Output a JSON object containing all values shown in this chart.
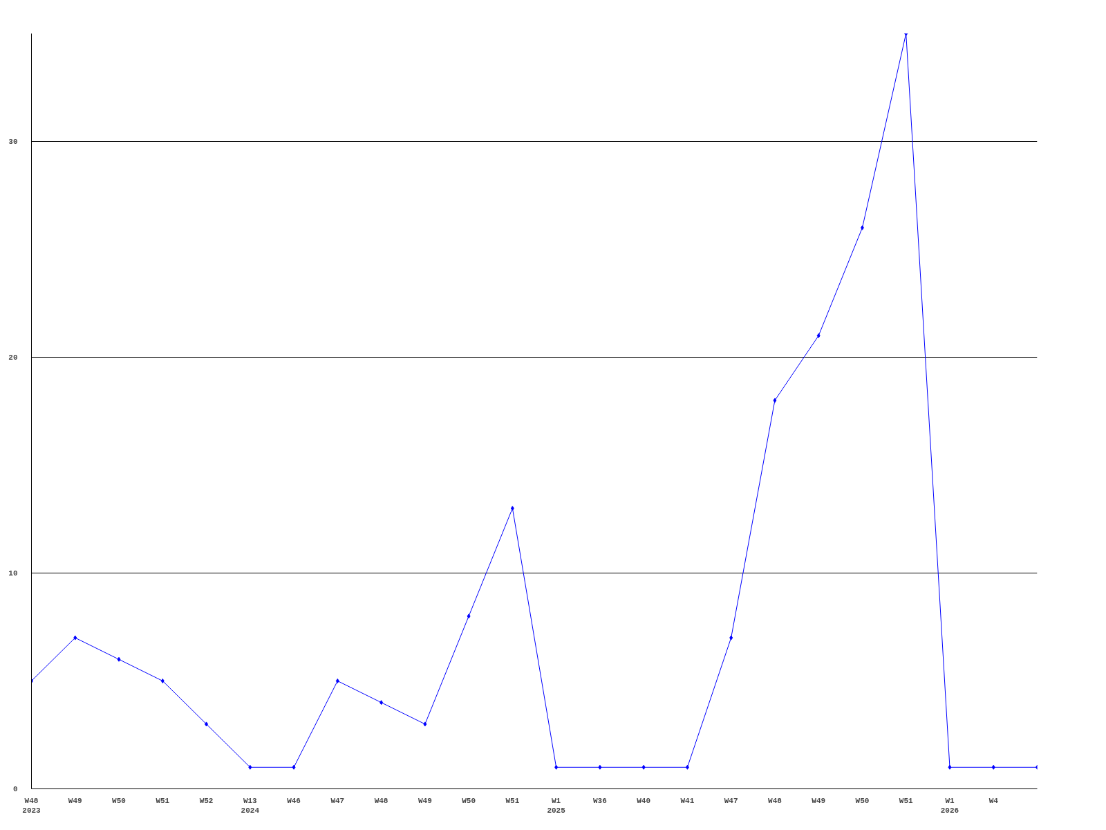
{
  "chart_data": {
    "type": "line",
    "categories": [
      "W48\n2023",
      "W49",
      "W50",
      "W51",
      "W52",
      "W13\n2024",
      "W46",
      "W47",
      "W48",
      "W49",
      "W50",
      "W51",
      "W1\n2025",
      "W36",
      "W40",
      "W41",
      "W47",
      "W48",
      "W49",
      "W50",
      "W51",
      "W1\n2026",
      "W4",
      null
    ],
    "series": [
      {
        "color": "#0000ff",
        "values": [
          5,
          7,
          6,
          5,
          3,
          1,
          1,
          5,
          4,
          3,
          8,
          13,
          1,
          1,
          1,
          1,
          7,
          18,
          21,
          26,
          35,
          1,
          1,
          1
        ]
      }
    ],
    "ylim": [
      0,
      35
    ],
    "yticks": [
      0,
      10,
      20,
      30
    ],
    "grid": "y",
    "marker": "diamond",
    "line_style": "solid"
  }
}
